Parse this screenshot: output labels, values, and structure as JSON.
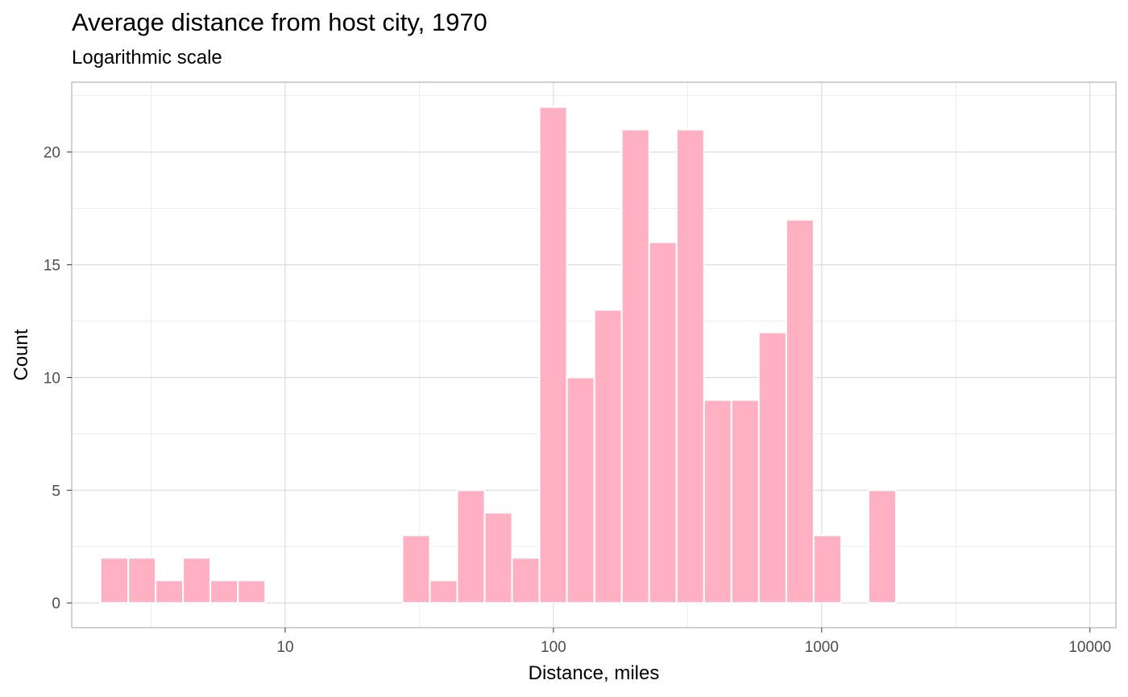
{
  "chart_data": {
    "type": "bar",
    "title": "Average distance from host city, 1970",
    "subtitle": "Logarithmic scale",
    "xlabel": "Distance, miles",
    "ylabel": "Count",
    "x_scale": "log10",
    "xlim": [
      1.6,
      12500
    ],
    "ylim": [
      -1.1,
      23.1
    ],
    "grid": true,
    "x_ticks": [
      10,
      100,
      1000,
      10000
    ],
    "x_tick_labels": [
      "10",
      "100",
      "1000",
      "10000"
    ],
    "y_ticks": [
      0,
      5,
      10,
      15,
      20
    ],
    "y_tick_labels": [
      "0",
      "5",
      "10",
      "15",
      "20"
    ],
    "bar_color": "#ffb1c3",
    "bins": [
      {
        "x_start": 2.05,
        "x_end": 2.6,
        "count": 2
      },
      {
        "x_start": 2.6,
        "x_end": 3.29,
        "count": 2
      },
      {
        "x_start": 3.29,
        "x_end": 4.16,
        "count": 1
      },
      {
        "x_start": 4.16,
        "x_end": 5.26,
        "count": 2
      },
      {
        "x_start": 5.26,
        "x_end": 6.66,
        "count": 1
      },
      {
        "x_start": 6.66,
        "x_end": 8.43,
        "count": 1
      },
      {
        "x_start": 8.43,
        "x_end": 10.67,
        "count": 0
      },
      {
        "x_start": 10.67,
        "x_end": 13.5,
        "count": 0
      },
      {
        "x_start": 13.5,
        "x_end": 17.08,
        "count": 0
      },
      {
        "x_start": 17.08,
        "x_end": 21.61,
        "count": 0
      },
      {
        "x_start": 21.61,
        "x_end": 27.35,
        "count": 0
      },
      {
        "x_start": 27.35,
        "x_end": 34.61,
        "count": 3
      },
      {
        "x_start": 34.61,
        "x_end": 43.79,
        "count": 1
      },
      {
        "x_start": 43.79,
        "x_end": 55.41,
        "count": 5
      },
      {
        "x_start": 55.41,
        "x_end": 70.12,
        "count": 4
      },
      {
        "x_start": 70.12,
        "x_end": 88.73,
        "count": 2
      },
      {
        "x_start": 88.73,
        "x_end": 112.3,
        "count": 22
      },
      {
        "x_start": 112.3,
        "x_end": 142.1,
        "count": 10
      },
      {
        "x_start": 142.1,
        "x_end": 179.8,
        "count": 13
      },
      {
        "x_start": 179.8,
        "x_end": 227.5,
        "count": 21
      },
      {
        "x_start": 227.5,
        "x_end": 287.9,
        "count": 16
      },
      {
        "x_start": 287.9,
        "x_end": 364.3,
        "count": 21
      },
      {
        "x_start": 364.3,
        "x_end": 461.0,
        "count": 9
      },
      {
        "x_start": 461.0,
        "x_end": 583.3,
        "count": 9
      },
      {
        "x_start": 583.3,
        "x_end": 738.1,
        "count": 12
      },
      {
        "x_start": 738.1,
        "x_end": 934.0,
        "count": 17
      },
      {
        "x_start": 934.0,
        "x_end": 1181.9,
        "count": 3
      },
      {
        "x_start": 1181.9,
        "x_end": 1495.6,
        "count": 0
      },
      {
        "x_start": 1495.6,
        "x_end": 1892.5,
        "count": 5
      },
      {
        "x_start": 1892.5,
        "x_end": 2394.7,
        "count": 0
      }
    ]
  }
}
